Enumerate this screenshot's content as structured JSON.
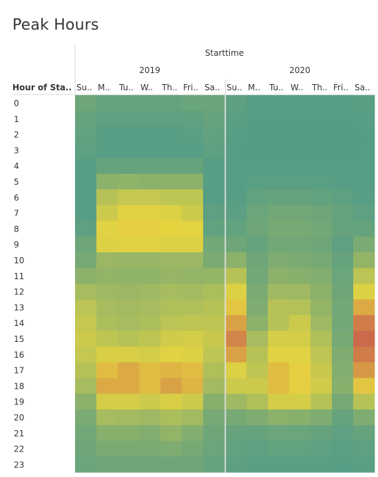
{
  "page": {
    "title": "Peak Hours"
  },
  "chart_data": {
    "type": "heatmap",
    "title": "Peak Hours",
    "column_header": "Starttime",
    "row_header": "Hour of Sta..",
    "years": [
      "2019",
      "2020"
    ],
    "days": [
      "Su..",
      "M..",
      "Tu..",
      "W..",
      "Th..",
      "Fri..",
      "Sa.."
    ],
    "hours": [
      "0",
      "1",
      "2",
      "3",
      "4",
      "5",
      "6",
      "7",
      "8",
      "9",
      "10",
      "11",
      "12",
      "13",
      "14",
      "15",
      "16",
      "17",
      "18",
      "19",
      "20",
      "21",
      "22",
      "23"
    ],
    "color_low": "#4e9a89",
    "color_mid": "#e6d43f",
    "color_high": "#c8604c",
    "intensity_scale": [
      0,
      1
    ],
    "values_2019": [
      [
        0.16,
        0.12,
        0.12,
        0.12,
        0.12,
        0.14,
        0.14
      ],
      [
        0.12,
        0.08,
        0.08,
        0.08,
        0.08,
        0.09,
        0.12
      ],
      [
        0.1,
        0.05,
        0.05,
        0.05,
        0.05,
        0.06,
        0.1
      ],
      [
        0.08,
        0.05,
        0.05,
        0.05,
        0.05,
        0.05,
        0.08
      ],
      [
        0.05,
        0.12,
        0.12,
        0.12,
        0.12,
        0.12,
        0.05
      ],
      [
        0.05,
        0.3,
        0.32,
        0.3,
        0.3,
        0.3,
        0.05
      ],
      [
        0.05,
        0.52,
        0.58,
        0.58,
        0.55,
        0.55,
        0.05
      ],
      [
        0.05,
        0.62,
        0.72,
        0.72,
        0.7,
        0.62,
        0.08
      ],
      [
        0.08,
        0.72,
        0.76,
        0.76,
        0.75,
        0.74,
        0.1
      ],
      [
        0.16,
        0.7,
        0.72,
        0.72,
        0.7,
        0.7,
        0.18
      ],
      [
        0.2,
        0.38,
        0.36,
        0.36,
        0.38,
        0.38,
        0.22
      ],
      [
        0.3,
        0.34,
        0.32,
        0.32,
        0.36,
        0.34,
        0.35
      ],
      [
        0.44,
        0.4,
        0.38,
        0.4,
        0.44,
        0.42,
        0.46
      ],
      [
        0.54,
        0.44,
        0.42,
        0.44,
        0.48,
        0.48,
        0.52
      ],
      [
        0.58,
        0.46,
        0.44,
        0.46,
        0.54,
        0.56,
        0.56
      ],
      [
        0.62,
        0.56,
        0.52,
        0.56,
        0.64,
        0.66,
        0.6
      ],
      [
        0.58,
        0.68,
        0.68,
        0.66,
        0.72,
        0.7,
        0.56
      ],
      [
        0.52,
        0.8,
        0.84,
        0.8,
        0.82,
        0.8,
        0.48
      ],
      [
        0.44,
        0.84,
        0.84,
        0.8,
        0.86,
        0.82,
        0.42
      ],
      [
        0.3,
        0.66,
        0.66,
        0.62,
        0.68,
        0.62,
        0.28
      ],
      [
        0.22,
        0.44,
        0.42,
        0.4,
        0.46,
        0.42,
        0.2
      ],
      [
        0.18,
        0.28,
        0.28,
        0.26,
        0.34,
        0.26,
        0.16
      ],
      [
        0.16,
        0.22,
        0.22,
        0.22,
        0.24,
        0.2,
        0.14
      ],
      [
        0.14,
        0.16,
        0.16,
        0.16,
        0.16,
        0.16,
        0.12
      ]
    ],
    "values_2020": [
      [
        0.08,
        0.05,
        0.05,
        0.05,
        0.05,
        0.05,
        0.06
      ],
      [
        0.06,
        0.04,
        0.04,
        0.04,
        0.04,
        0.04,
        0.05
      ],
      [
        0.05,
        0.03,
        0.03,
        0.03,
        0.03,
        0.03,
        0.04
      ],
      [
        0.04,
        0.03,
        0.03,
        0.03,
        0.03,
        0.03,
        0.04
      ],
      [
        0.04,
        0.04,
        0.04,
        0.04,
        0.04,
        0.04,
        0.04
      ],
      [
        0.04,
        0.06,
        0.06,
        0.06,
        0.06,
        0.05,
        0.04
      ],
      [
        0.05,
        0.1,
        0.12,
        0.12,
        0.1,
        0.08,
        0.05
      ],
      [
        0.07,
        0.14,
        0.18,
        0.18,
        0.16,
        0.12,
        0.08
      ],
      [
        0.1,
        0.16,
        0.2,
        0.2,
        0.18,
        0.12,
        0.12
      ],
      [
        0.16,
        0.12,
        0.18,
        0.18,
        0.16,
        0.08,
        0.22
      ],
      [
        0.3,
        0.16,
        0.24,
        0.22,
        0.2,
        0.12,
        0.34
      ],
      [
        0.52,
        0.18,
        0.3,
        0.28,
        0.26,
        0.14,
        0.54
      ],
      [
        0.7,
        0.22,
        0.4,
        0.4,
        0.3,
        0.16,
        0.7
      ],
      [
        0.78,
        0.24,
        0.52,
        0.5,
        0.34,
        0.18,
        0.84
      ],
      [
        0.86,
        0.3,
        0.52,
        0.62,
        0.4,
        0.18,
        0.94
      ],
      [
        0.92,
        0.44,
        0.66,
        0.66,
        0.48,
        0.2,
        0.98
      ],
      [
        0.86,
        0.52,
        0.72,
        0.72,
        0.56,
        0.24,
        0.94
      ],
      [
        0.7,
        0.56,
        0.8,
        0.76,
        0.6,
        0.26,
        0.88
      ],
      [
        0.62,
        0.62,
        0.8,
        0.76,
        0.64,
        0.28,
        0.78
      ],
      [
        0.4,
        0.48,
        0.66,
        0.66,
        0.52,
        0.2,
        0.52
      ],
      [
        0.2,
        0.24,
        0.3,
        0.28,
        0.24,
        0.12,
        0.24
      ],
      [
        0.12,
        0.12,
        0.14,
        0.14,
        0.12,
        0.08,
        0.12
      ],
      [
        0.1,
        0.08,
        0.1,
        0.1,
        0.08,
        0.06,
        0.08
      ],
      [
        0.08,
        0.06,
        0.06,
        0.06,
        0.06,
        0.05,
        0.06
      ]
    ]
  }
}
